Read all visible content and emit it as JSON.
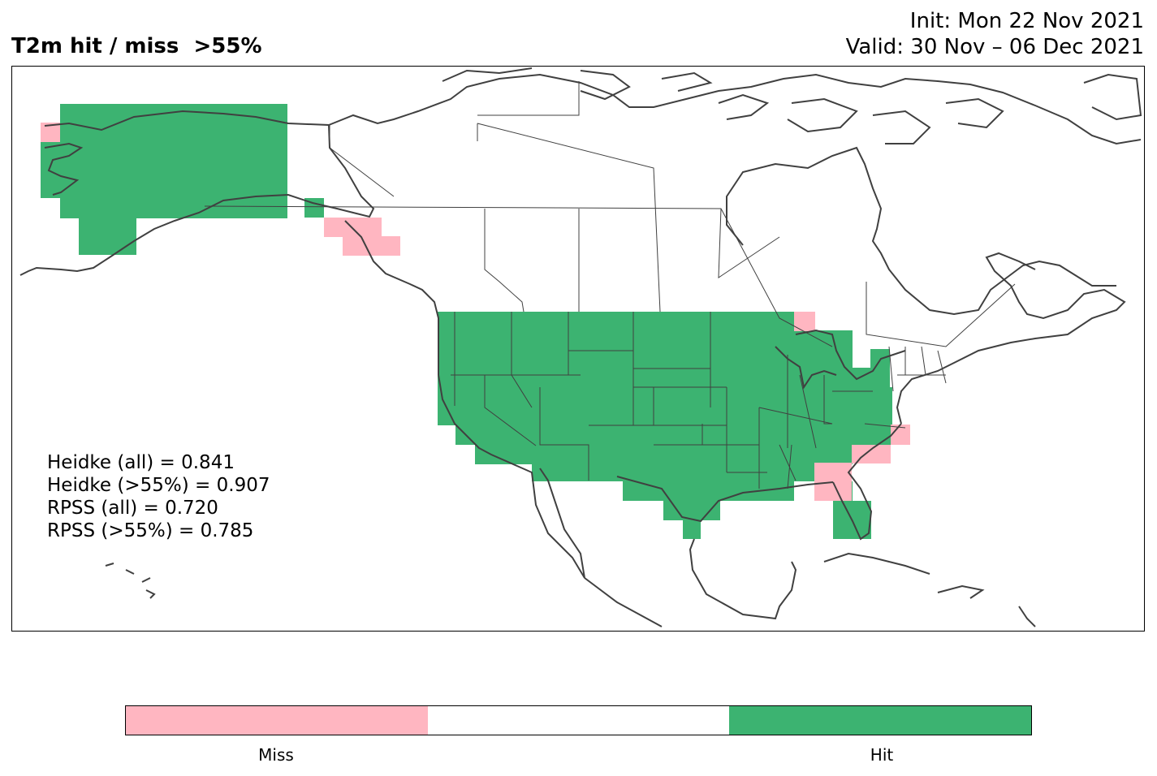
{
  "title": "T2m hit / miss  >55%",
  "init_label": "Init: Mon 22 Nov 2021",
  "valid_label": "Valid: 30 Nov – 06 Dec 2021",
  "stats": [
    "Heidke (all) = 0.841",
    "Heidke (>55%) = 0.907",
    "RPSS (all) = 0.720",
    "RPSS (>55%) = 0.785"
  ],
  "colors": {
    "miss": "#ffb6c1",
    "neutral": "#ffffff",
    "hit": "#3cb371",
    "coast": "#404040"
  },
  "colorbar": {
    "labels": [
      "Miss",
      "Hit"
    ]
  }
}
